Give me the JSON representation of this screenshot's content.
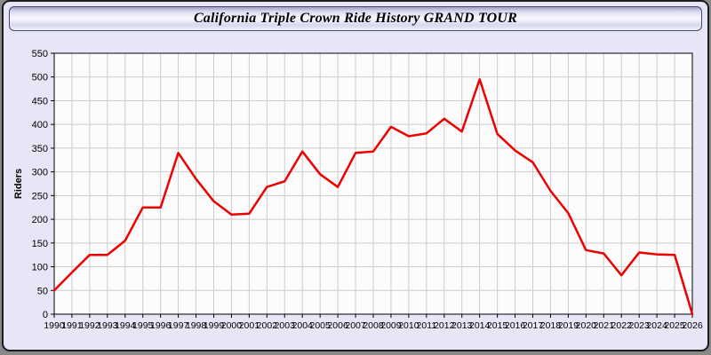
{
  "header": {
    "title": "California Triple Crown Ride History GRAND TOUR"
  },
  "colors": {
    "page_bg": "#e6e6f7",
    "plot_bg": "#fcfcfc",
    "grid": "#cccccc",
    "axis": "#000000",
    "line": "#ee0000",
    "outer_border": "#1c1c1c"
  },
  "chart_data": {
    "type": "line",
    "title": "California Triple Crown Ride History GRAND TOUR",
    "xlabel": "",
    "ylabel": "Riders",
    "ylim": [
      0,
      550
    ],
    "ytick_step": 50,
    "grid": true,
    "legend": "none",
    "series_name": "Riders",
    "x": [
      1990,
      1991,
      1992,
      1993,
      1994,
      1995,
      1996,
      1997,
      1998,
      1999,
      2000,
      2001,
      2002,
      2003,
      2004,
      2005,
      2006,
      2007,
      2008,
      2009,
      2010,
      2011,
      2012,
      2013,
      2014,
      2015,
      2016,
      2017,
      2018,
      2019,
      2020,
      2021,
      2022,
      2023,
      2024,
      2025,
      2026
    ],
    "values": [
      50,
      88,
      125,
      125,
      155,
      225,
      225,
      340,
      285,
      238,
      210,
      212,
      268,
      280,
      343,
      295,
      268,
      340,
      343,
      395,
      375,
      381,
      412,
      385,
      495,
      380,
      345,
      320,
      260,
      213,
      135,
      128,
      82,
      130,
      126,
      125,
      0
    ]
  }
}
